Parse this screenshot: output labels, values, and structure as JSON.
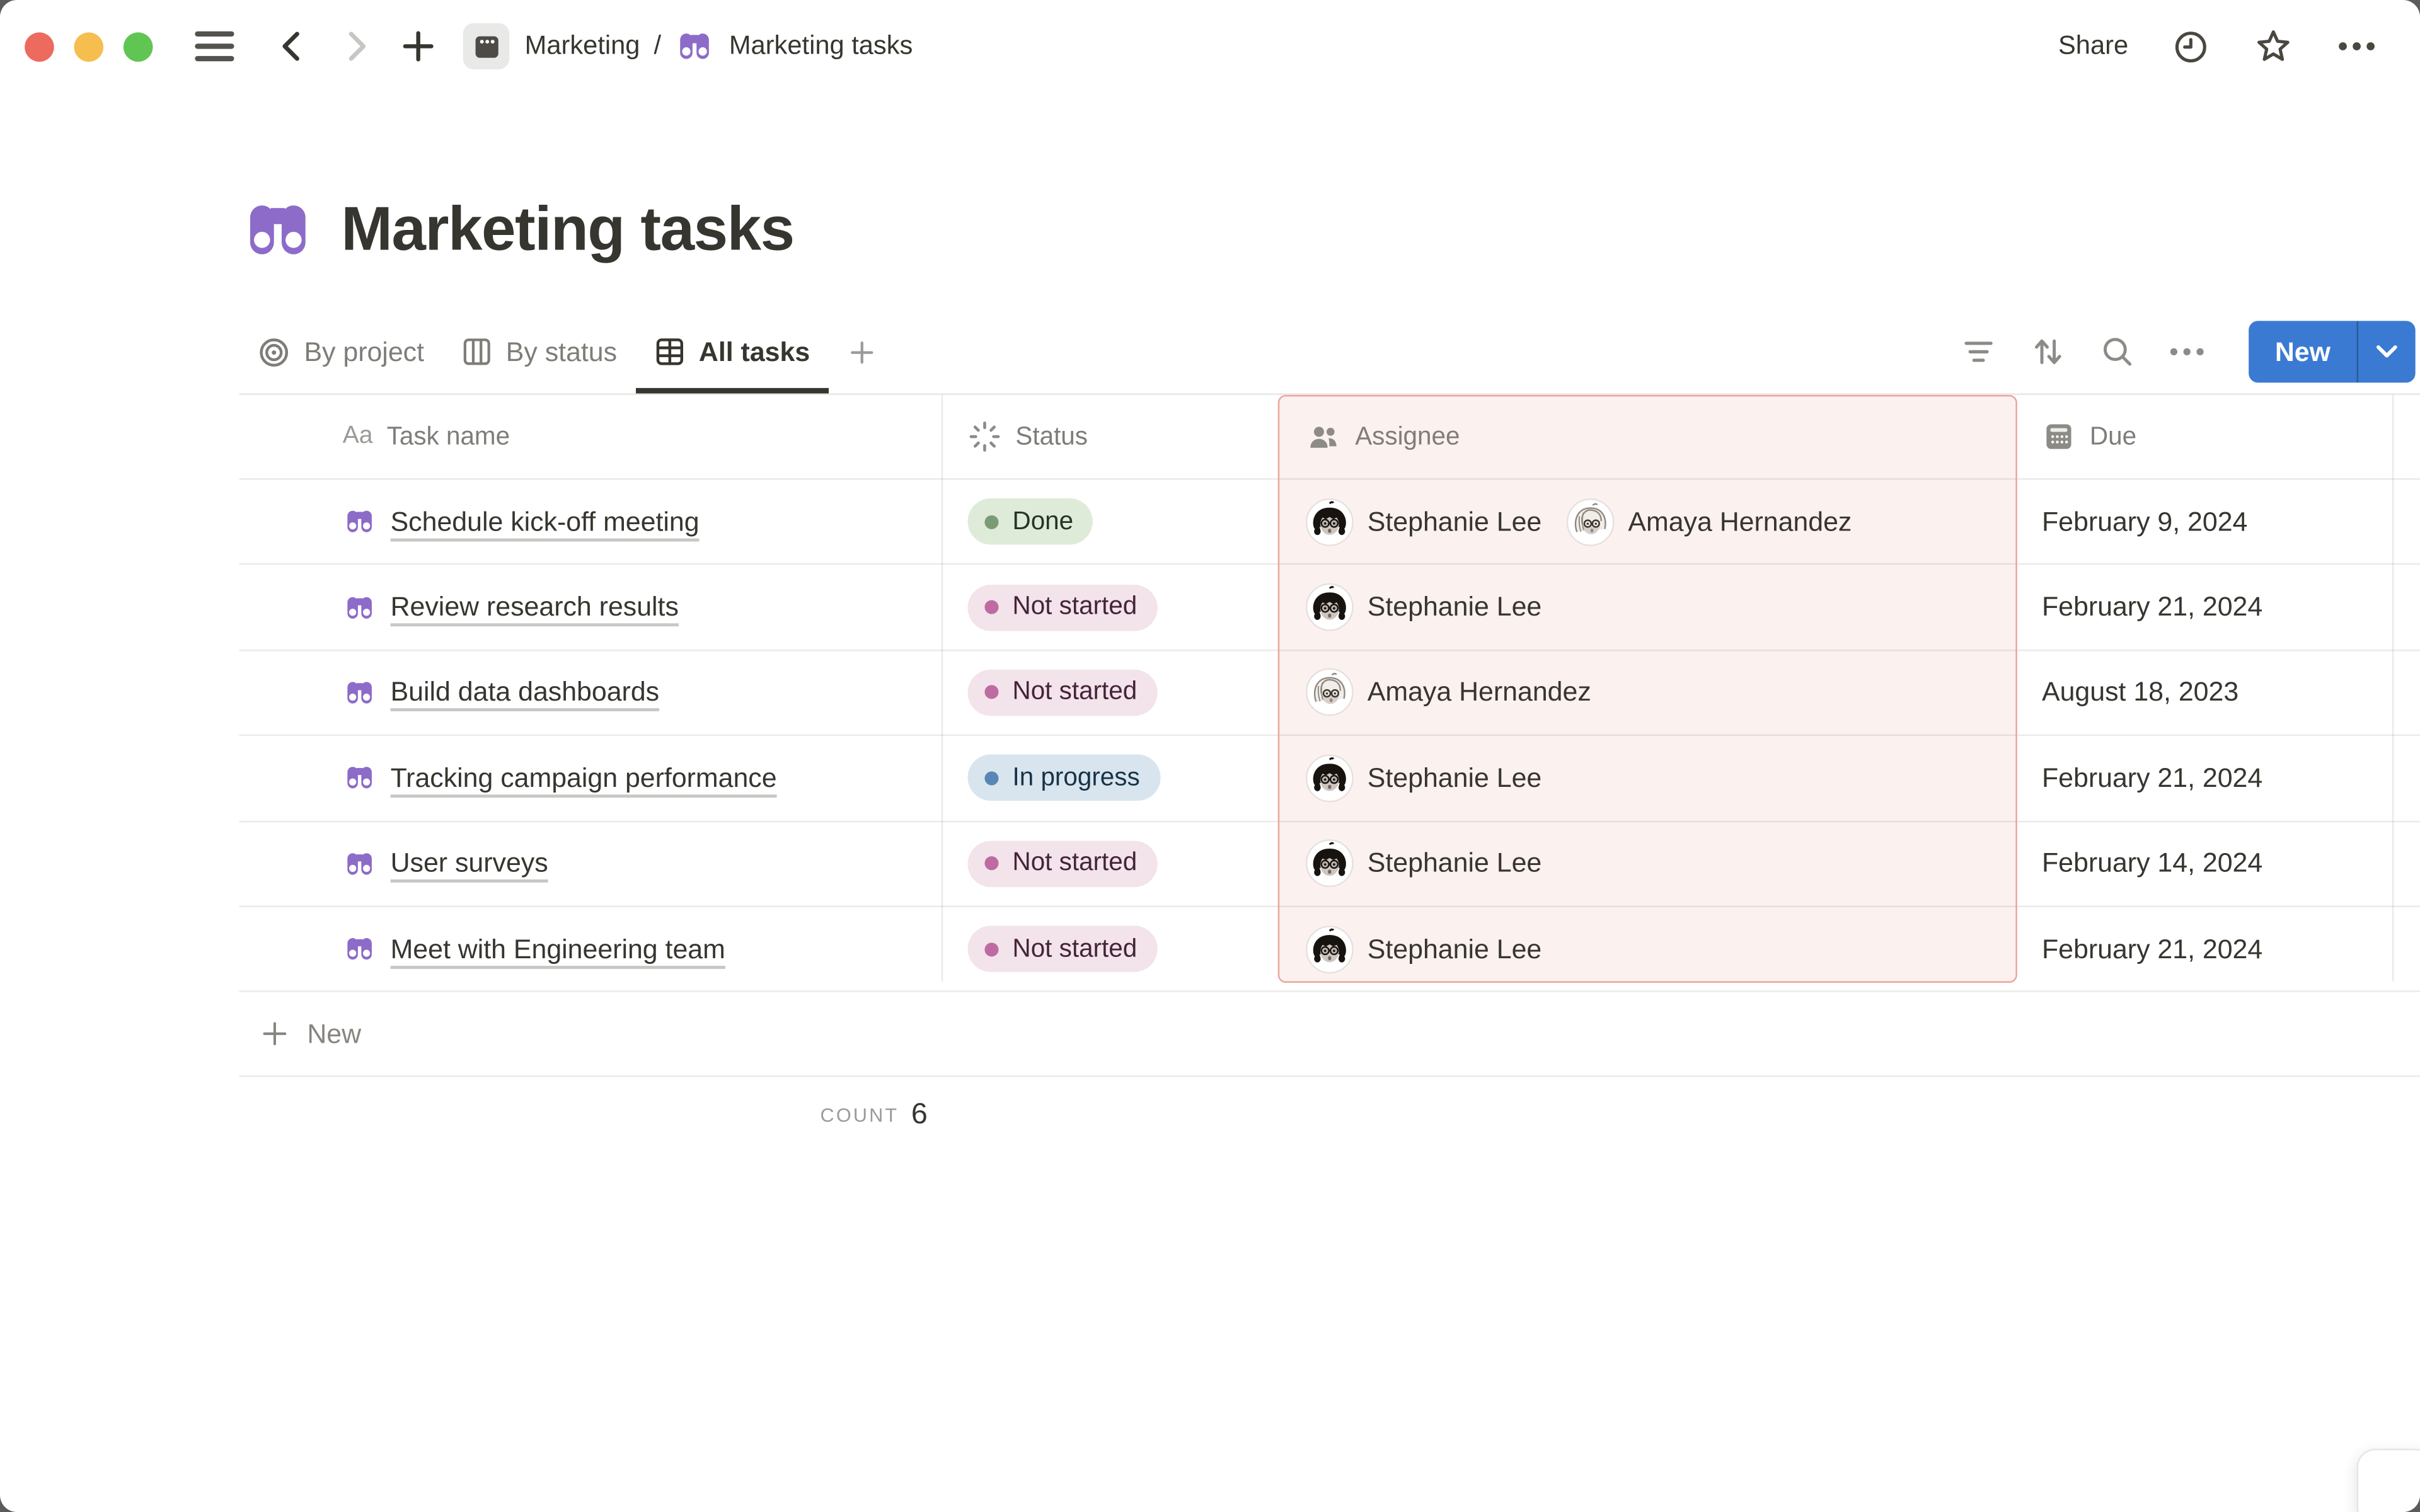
{
  "topbar": {
    "share_label": "Share",
    "window_controls": [
      "close",
      "minimize",
      "zoom"
    ]
  },
  "breadcrumb": {
    "parent": "Marketing",
    "separator": "/",
    "current": "Marketing tasks"
  },
  "page": {
    "title": "Marketing tasks",
    "icon": "binoculars-icon"
  },
  "views": [
    {
      "label": "By project",
      "icon": "target-icon",
      "active": false
    },
    {
      "label": "By status",
      "icon": "board-icon",
      "active": false
    },
    {
      "label": "All tasks",
      "icon": "table-icon",
      "active": true
    }
  ],
  "toolbar": {
    "filter_icon": "filter-icon",
    "sort_icon": "sort-icon",
    "search_icon": "search-icon",
    "more_icon": "ellipsis-icon",
    "new_label": "New"
  },
  "table": {
    "columns": [
      {
        "label": "Task name",
        "icon": "text-icon",
        "icon_glyph": "Aa",
        "highlighted": false
      },
      {
        "label": "Status",
        "icon": "status-burst-icon",
        "highlighted": false
      },
      {
        "label": "Assignee",
        "icon": "people-icon",
        "highlighted": true
      },
      {
        "label": "Due",
        "icon": "calendar-icon",
        "highlighted": false
      }
    ],
    "rows": [
      {
        "task": "Schedule kick-off meeting",
        "status": {
          "label": "Done",
          "variant": "green"
        },
        "assignees": [
          "Stephanie Lee",
          "Amaya Hernandez"
        ],
        "due": "February 9, 2024"
      },
      {
        "task": "Review research results",
        "status": {
          "label": "Not started",
          "variant": "pink"
        },
        "assignees": [
          "Stephanie Lee"
        ],
        "due": "February 21, 2024"
      },
      {
        "task": "Build data dashboards",
        "status": {
          "label": "Not started",
          "variant": "pink"
        },
        "assignees": [
          "Amaya Hernandez"
        ],
        "due": "August 18, 2023"
      },
      {
        "task": "Tracking campaign performance",
        "status": {
          "label": "In progress",
          "variant": "blue"
        },
        "assignees": [
          "Stephanie Lee"
        ],
        "due": "February 21, 2024"
      },
      {
        "task": "User surveys",
        "status": {
          "label": "Not started",
          "variant": "pink"
        },
        "assignees": [
          "Stephanie Lee"
        ],
        "due": "February 14, 2024"
      },
      {
        "task": "Meet with Engineering team",
        "status": {
          "label": "Not started",
          "variant": "pink"
        },
        "assignees": [
          "Stephanie Lee"
        ],
        "due": "February 21, 2024"
      }
    ],
    "new_row_label": "New",
    "footer": {
      "calc_label": "COUNT",
      "calc_value": "6"
    }
  },
  "people": {
    "Stephanie Lee": "dark",
    "Amaya Hernandez": "light"
  },
  "colors": {
    "accent_blue": "#3A7AD2",
    "title_icon_purple": "#8D6BC8",
    "highlight_column_bg": "#FBF1EF",
    "highlight_column_border": "#ECA59C",
    "traffic_red": "#EC6A5E",
    "traffic_yellow": "#F5BE4F",
    "traffic_green": "#61C554",
    "status_colors": {
      "green": {
        "bg": "#DEEBD9",
        "dot": "#7A9B76",
        "text": "#223528"
      },
      "pink": {
        "bg": "#F3E3EA",
        "dot": "#BD6BA0",
        "text": "#44243A"
      },
      "blue": {
        "bg": "#D8E5EF",
        "dot": "#5886B5",
        "text": "#183347"
      }
    }
  }
}
